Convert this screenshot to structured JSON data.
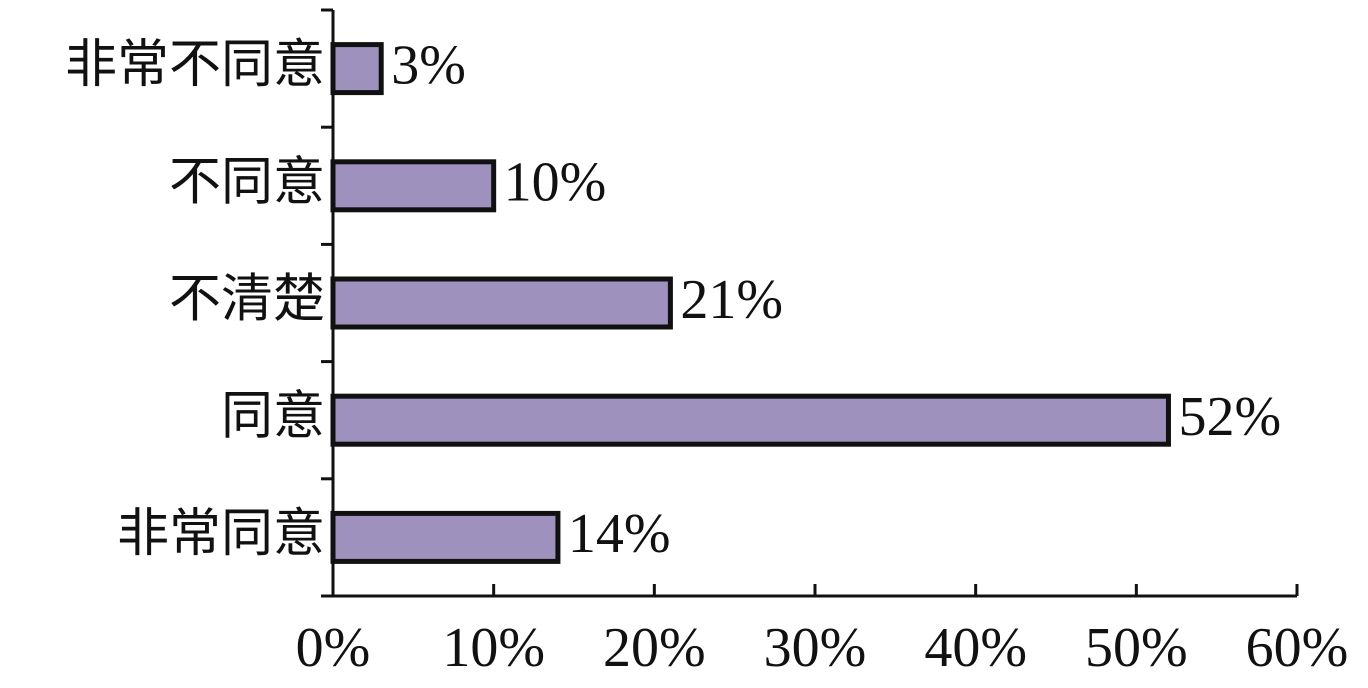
{
  "chart_data": {
    "type": "bar",
    "orientation": "horizontal",
    "categories": [
      "非常不同意",
      "不同意",
      "不清楚",
      "同意",
      "非常同意"
    ],
    "values": [
      3,
      10,
      21,
      52,
      14
    ],
    "value_labels": [
      "3%",
      "10%",
      "21%",
      "52%",
      "14%"
    ],
    "x_ticks": [
      0,
      10,
      20,
      30,
      40,
      50,
      60
    ],
    "x_tick_labels": [
      "0%",
      "10%",
      "20%",
      "30%",
      "40%",
      "50%",
      "60%"
    ],
    "xlim": [
      0,
      60
    ],
    "unit": "%",
    "title": "",
    "xlabel": "",
    "ylabel": "",
    "grid": false,
    "legend": "none",
    "bar_color": "#9e91bd",
    "bar_edge_color": "#111111"
  }
}
